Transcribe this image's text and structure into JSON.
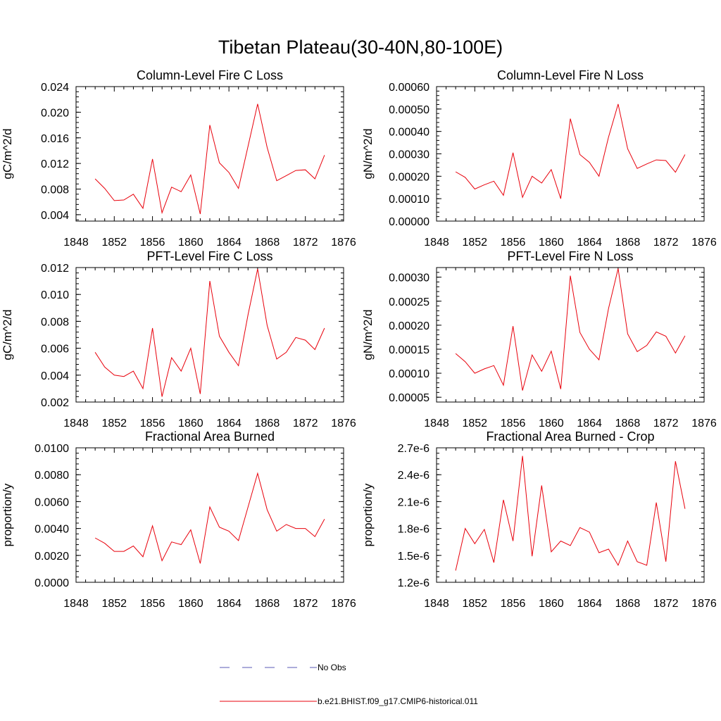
{
  "title": "Tibetan Plateau(30-40N,80-100E)",
  "legend": {
    "items": [
      {
        "label": "No Obs",
        "color": "#5a5ab4",
        "dash": true
      },
      {
        "label": "b.e21.BHIST.f09_g17.CMIP6-historical.011",
        "color": "#e8000b",
        "dash": false
      }
    ]
  },
  "chart_data": [
    {
      "type": "line",
      "title": "Column-Level Fire C Loss",
      "ylabel": "gC/m^2/d",
      "xlim": [
        1848,
        1876
      ],
      "ylim": [
        0.003,
        0.024
      ],
      "xticks": [
        1848,
        1852,
        1856,
        1860,
        1864,
        1868,
        1872,
        1876
      ],
      "yticks": [
        0.004,
        0.008,
        0.012,
        0.016,
        0.02,
        0.024
      ],
      "ytick_labels": [
        "0.004",
        "0.008",
        "0.012",
        "0.016",
        "0.020",
        "0.024"
      ],
      "x": [
        1850,
        1851,
        1852,
        1853,
        1854,
        1855,
        1856,
        1857,
        1858,
        1859,
        1860,
        1861,
        1862,
        1863,
        1864,
        1865,
        1866,
        1867,
        1868,
        1869,
        1870,
        1871,
        1872,
        1873,
        1874
      ],
      "series": [
        {
          "values": [
            0.0096,
            0.0081,
            0.0062,
            0.0063,
            0.0072,
            0.005,
            0.0127,
            0.0043,
            0.0083,
            0.0076,
            0.0102,
            0.0041,
            0.018,
            0.0121,
            0.0106,
            0.0081,
            0.0147,
            0.0213,
            0.0145,
            0.0093,
            0.0101,
            0.0109,
            0.011,
            0.0096,
            0.0133
          ],
          "color": "#e8000b"
        }
      ]
    },
    {
      "type": "line",
      "title": "Column-Level Fire N Loss",
      "ylabel": "gN/m^2/d",
      "xlim": [
        1848,
        1876
      ],
      "ylim": [
        0.0,
        0.0006
      ],
      "xticks": [
        1848,
        1852,
        1856,
        1860,
        1864,
        1868,
        1872,
        1876
      ],
      "yticks": [
        0.0,
        0.0001,
        0.0002,
        0.0003,
        0.0004,
        0.0005,
        0.0006
      ],
      "ytick_labels": [
        "0.00000",
        "0.00010",
        "0.00020",
        "0.00030",
        "0.00040",
        "0.00050",
        "0.00060"
      ],
      "x": [
        1850,
        1851,
        1852,
        1853,
        1854,
        1855,
        1856,
        1857,
        1858,
        1859,
        1860,
        1861,
        1862,
        1863,
        1864,
        1865,
        1866,
        1867,
        1868,
        1869,
        1870,
        1871,
        1872,
        1873,
        1874
      ],
      "series": [
        {
          "values": [
            0.00022,
            0.000195,
            0.000143,
            0.000162,
            0.000178,
            0.000115,
            0.000305,
            0.000106,
            0.0002,
            0.00017,
            0.00023,
            0.0001,
            0.000457,
            0.000297,
            0.000262,
            0.0002,
            0.000375,
            0.000522,
            0.000323,
            0.000235,
            0.000255,
            0.000273,
            0.00027,
            0.000218,
            0.000297
          ],
          "color": "#e8000b"
        }
      ]
    },
    {
      "type": "line",
      "title": "PFT-Level Fire C Loss",
      "ylabel": "gC/m^2/d",
      "xlim": [
        1848,
        1876
      ],
      "ylim": [
        0.002,
        0.012
      ],
      "xticks": [
        1848,
        1852,
        1856,
        1860,
        1864,
        1868,
        1872,
        1876
      ],
      "yticks": [
        0.002,
        0.004,
        0.006,
        0.008,
        0.01,
        0.012
      ],
      "ytick_labels": [
        "0.002",
        "0.004",
        "0.006",
        "0.008",
        "0.010",
        "0.012"
      ],
      "x": [
        1850,
        1851,
        1852,
        1853,
        1854,
        1855,
        1856,
        1857,
        1858,
        1859,
        1860,
        1861,
        1862,
        1863,
        1864,
        1865,
        1866,
        1867,
        1868,
        1869,
        1870,
        1871,
        1872,
        1873,
        1874
      ],
      "series": [
        {
          "values": [
            0.0057,
            0.0046,
            0.004,
            0.0039,
            0.0043,
            0.003,
            0.0075,
            0.0024,
            0.0053,
            0.0043,
            0.006,
            0.0026,
            0.011,
            0.0069,
            0.0057,
            0.0047,
            0.0085,
            0.0119,
            0.0077,
            0.0052,
            0.0057,
            0.0068,
            0.0066,
            0.0059,
            0.0075
          ],
          "color": "#e8000b"
        }
      ]
    },
    {
      "type": "line",
      "title": "PFT-Level Fire N Loss",
      "ylabel": "gN/m^2/d",
      "xlim": [
        1848,
        1876
      ],
      "ylim": [
        4e-05,
        0.00032
      ],
      "xticks": [
        1848,
        1852,
        1856,
        1860,
        1864,
        1868,
        1872,
        1876
      ],
      "yticks": [
        5e-05,
        0.0001,
        0.00015,
        0.0002,
        0.00025,
        0.0003
      ],
      "ytick_labels": [
        "0.00005",
        "0.00010",
        "0.00015",
        "0.00020",
        "0.00025",
        "0.00030"
      ],
      "x": [
        1850,
        1851,
        1852,
        1853,
        1854,
        1855,
        1856,
        1857,
        1858,
        1859,
        1860,
        1861,
        1862,
        1863,
        1864,
        1865,
        1866,
        1867,
        1868,
        1869,
        1870,
        1871,
        1872,
        1873,
        1874
      ],
      "series": [
        {
          "values": [
            0.000141,
            0.000124,
            0.0001,
            0.000109,
            0.000116,
            7.5e-05,
            0.000198,
            6.4e-05,
            0.000138,
            0.000104,
            0.000146,
            6.7e-05,
            0.000303,
            0.000185,
            0.00015,
            0.000128,
            0.000235,
            0.000318,
            0.000182,
            0.000145,
            0.000158,
            0.000186,
            0.000177,
            0.000142,
            0.000178
          ],
          "color": "#e8000b"
        }
      ]
    },
    {
      "type": "line",
      "title": "Fractional Area Burned",
      "ylabel": "proportion/y",
      "xlim": [
        1848,
        1876
      ],
      "ylim": [
        0.0,
        0.01
      ],
      "xticks": [
        1848,
        1852,
        1856,
        1860,
        1864,
        1868,
        1872,
        1876
      ],
      "yticks": [
        0.0,
        0.002,
        0.004,
        0.006,
        0.008,
        0.01
      ],
      "ytick_labels": [
        "0.0000",
        "0.0020",
        "0.0040",
        "0.0060",
        "0.0080",
        "0.0100"
      ],
      "x": [
        1850,
        1851,
        1852,
        1853,
        1854,
        1855,
        1856,
        1857,
        1858,
        1859,
        1860,
        1861,
        1862,
        1863,
        1864,
        1865,
        1866,
        1867,
        1868,
        1869,
        1870,
        1871,
        1872,
        1873,
        1874
      ],
      "series": [
        {
          "values": [
            0.0033,
            0.0029,
            0.0023,
            0.0023,
            0.0027,
            0.0019,
            0.0042,
            0.0016,
            0.003,
            0.0028,
            0.0039,
            0.0014,
            0.0056,
            0.0041,
            0.0038,
            0.0031,
            0.0056,
            0.0081,
            0.0054,
            0.0038,
            0.0043,
            0.004,
            0.004,
            0.0034,
            0.0047
          ],
          "color": "#e8000b"
        }
      ]
    },
    {
      "type": "line",
      "title": "Fractional Area Burned - Crop",
      "ylabel": "proportion/y",
      "xlim": [
        1848,
        1876
      ],
      "ylim": [
        1.2e-06,
        2.7e-06
      ],
      "xticks": [
        1848,
        1852,
        1856,
        1860,
        1864,
        1868,
        1872,
        1876
      ],
      "yticks": [
        1.2e-06,
        1.5e-06,
        1.8e-06,
        2.1e-06,
        2.4e-06,
        2.7e-06
      ],
      "ytick_labels": [
        "1.2e-6",
        "1.5e-6",
        "1.8e-6",
        "2.1e-6",
        "2.4e-6",
        "2.7e-6"
      ],
      "x": [
        1850,
        1851,
        1852,
        1853,
        1854,
        1855,
        1856,
        1857,
        1858,
        1859,
        1860,
        1861,
        1862,
        1863,
        1864,
        1865,
        1866,
        1867,
        1868,
        1869,
        1870,
        1871,
        1872,
        1873,
        1874
      ],
      "series": [
        {
          "values": [
            1.33e-06,
            1.8e-06,
            1.63e-06,
            1.79e-06,
            1.42e-06,
            2.12e-06,
            1.66e-06,
            2.61e-06,
            1.49e-06,
            2.28e-06,
            1.54e-06,
            1.66e-06,
            1.61e-06,
            1.81e-06,
            1.76e-06,
            1.53e-06,
            1.57e-06,
            1.39e-06,
            1.66e-06,
            1.43e-06,
            1.39e-06,
            2.09e-06,
            1.43e-06,
            2.55e-06,
            2.02e-06
          ],
          "color": "#e8000b"
        }
      ]
    }
  ]
}
